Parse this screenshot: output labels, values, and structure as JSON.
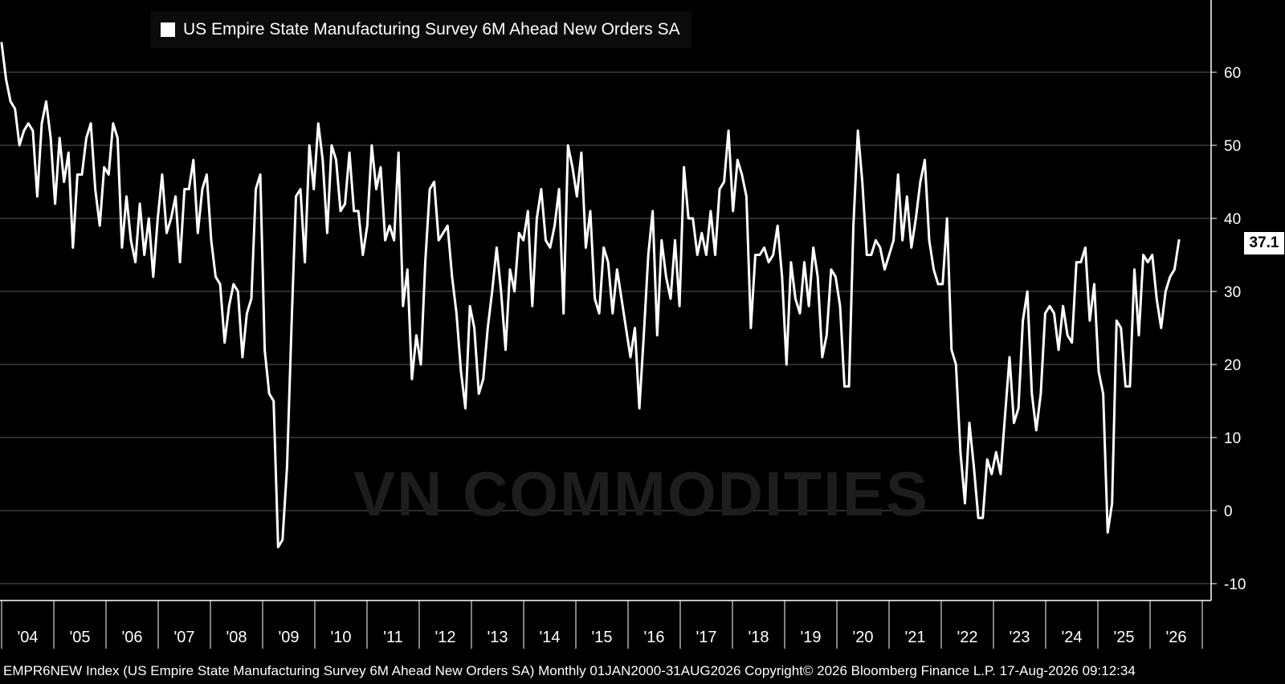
{
  "legend": {
    "label": "US Empire State Manufacturing Survey 6M Ahead New Orders SA"
  },
  "watermark": "VN COMMODITIES",
  "footer": "EMPR6NEW Index (US Empire State Manufacturing Survey 6M Ahead New Orders SA) Monthly 01JAN2000-31AUG2026 Copyright© 2026 Bloomberg Finance L.P. 17-Aug-2026 09:12:34",
  "last_value_label": "37.1",
  "colors": {
    "background": "#000000",
    "line": "#ffffff",
    "grid": "#5a5a5a"
  },
  "chart_data": {
    "type": "line",
    "title": "US Empire State Manufacturing Survey 6M Ahead New Orders SA",
    "xlabel": "",
    "ylabel": "",
    "ylim": [
      -10,
      68
    ],
    "y_ticks": [
      -10,
      0,
      10,
      20,
      30,
      40,
      50,
      60
    ],
    "x_ticks": [
      "'04",
      "'05",
      "'06",
      "'07",
      "'08",
      "'09",
      "'10",
      "'11",
      "'12",
      "'13",
      "'14",
      "'15",
      "'16",
      "'17",
      "'18",
      "'19",
      "'20",
      "'21",
      "'22",
      "'23",
      "'24",
      "'25",
      "'26"
    ],
    "grid": "horizontal",
    "legend_position": "top-left",
    "x_start": "2003-06",
    "x_end": "2026-08",
    "series": [
      {
        "name": "US Empire State Manufacturing Survey 6M Ahead New Orders SA",
        "frequency": "monthly",
        "values": [
          64,
          59,
          56,
          55,
          50,
          52,
          53,
          52,
          43,
          53,
          56,
          51,
          42,
          51,
          45,
          49,
          36,
          46,
          46,
          51,
          53,
          44,
          39,
          47,
          46,
          53,
          51,
          36,
          43,
          37,
          34,
          42,
          35,
          40,
          32,
          40,
          46,
          38,
          40,
          43,
          34,
          44,
          44,
          48,
          38,
          44,
          46,
          37,
          32,
          31,
          23,
          28,
          31,
          30,
          21,
          27,
          29,
          44,
          46,
          22,
          16,
          15,
          -5,
          -4,
          6,
          25,
          43,
          44,
          34,
          50,
          44,
          53,
          48,
          38,
          50,
          48,
          41,
          42,
          49,
          41,
          41,
          35,
          39,
          50,
          44,
          47,
          37,
          39,
          37,
          49,
          28,
          33,
          18,
          24,
          20,
          34,
          44,
          45,
          37,
          38,
          39,
          32,
          27,
          19,
          14,
          28,
          25,
          16,
          18,
          25,
          30,
          36,
          30,
          22,
          33,
          30,
          38,
          37,
          41,
          28,
          40,
          44,
          37,
          36,
          39,
          44,
          27,
          50,
          47,
          43,
          49,
          36,
          41,
          29,
          27,
          36,
          34,
          27,
          33,
          29,
          25,
          21,
          25,
          14,
          24,
          35,
          41,
          24,
          37,
          32,
          29,
          37,
          28,
          47,
          40,
          40,
          35,
          38,
          35,
          41,
          35,
          44,
          45,
          52,
          41,
          48,
          46,
          43,
          25,
          35,
          35,
          36,
          34,
          35,
          39,
          32,
          20,
          34,
          29,
          27,
          34,
          28,
          36,
          32,
          21,
          24,
          33,
          32,
          28,
          17,
          17,
          39,
          52,
          45,
          35,
          35,
          37,
          36,
          33,
          35,
          37,
          46,
          37,
          43,
          36,
          40,
          45,
          48,
          37,
          33,
          31,
          31,
          40,
          22,
          20,
          8,
          1,
          12,
          6,
          -1,
          -1,
          7,
          5,
          8,
          5,
          13,
          21,
          12,
          14,
          26,
          30,
          16,
          11,
          16,
          27,
          28,
          27,
          22,
          28,
          24,
          23,
          34,
          34,
          36,
          26,
          31,
          19,
          16,
          -3,
          1,
          26,
          25,
          17,
          17,
          33,
          24,
          35,
          34,
          35,
          29,
          25,
          30,
          32,
          33,
          37
        ]
      }
    ]
  }
}
